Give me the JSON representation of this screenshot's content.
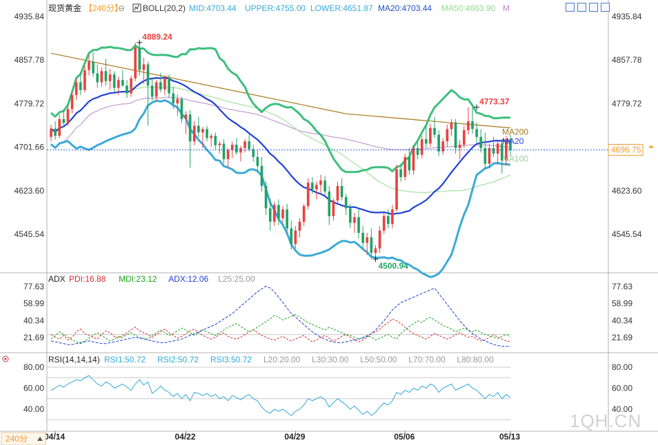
{
  "header": {
    "title": "现货黄金",
    "period": "【240分】",
    "boll_label": "BOLL(20,2)",
    "mid": "MID:4703.44",
    "upper": "UPPER:4755.00",
    "lower": "LOWER:4651.87",
    "ma20": "MA20:4703.44",
    "ma50": "MA50:4663.90",
    "m_trunc": "M"
  },
  "period_footer": "240分",
  "watermark": "1QH.CN",
  "colors": {
    "up": "#e8433f",
    "down": "#21a366",
    "upper_band": "#3dbf7c",
    "lower_band": "#3aa9d8",
    "mid_band": "#1f3fd6",
    "ma50": "#8ede8a",
    "ma100": "#b788c8",
    "ma200": "#a7771a",
    "pdi": "#d9282b",
    "mdi": "#1aa31a",
    "adx": "#1f3fd6",
    "rsi": "#30a8d8",
    "grid": "#c8c8c8",
    "price_tag": "#f39a2b"
  },
  "chart_data": [
    {
      "type": "candlestick",
      "title": "现货黄金",
      "y_ticks": [
        "4935.84",
        "4857.78",
        "4779.72",
        "4701.66",
        "4623.60",
        "4545.54"
      ],
      "ylim": [
        4480,
        4950
      ],
      "x_ticks": [
        {
          "label": "04/14",
          "index": 1
        },
        {
          "label": "04/22",
          "index": 32
        },
        {
          "label": "04/29",
          "index": 58
        },
        {
          "label": "05/06",
          "index": 84
        },
        {
          "label": "05/13",
          "index": 109
        }
      ],
      "current_price": 4696.75,
      "current_price_label": "4696.75",
      "annotations": [
        {
          "text": "4889.24",
          "index": 21,
          "value": 4889.24
        },
        {
          "text": "4500.94",
          "index": 77,
          "value": 4500.94
        },
        {
          "text": "4773.37",
          "index": 101,
          "value": 4773.37
        }
      ],
      "series_labels": [
        "MA20",
        "MA200",
        "MA100"
      ],
      "candles": [
        [
          4720,
          4742,
          4712,
          4735
        ],
        [
          4735,
          4748,
          4715,
          4722
        ],
        [
          4722,
          4760,
          4718,
          4752
        ],
        [
          4752,
          4770,
          4738,
          4745
        ],
        [
          4745,
          4778,
          4740,
          4770
        ],
        [
          4770,
          4800,
          4762,
          4795
        ],
        [
          4795,
          4825,
          4786,
          4818
        ],
        [
          4818,
          4835,
          4795,
          4804
        ],
        [
          4804,
          4848,
          4800,
          4840
        ],
        [
          4840,
          4868,
          4830,
          4855
        ],
        [
          4855,
          4872,
          4828,
          4834
        ],
        [
          4834,
          4850,
          4808,
          4818
        ],
        [
          4818,
          4845,
          4810,
          4838
        ],
        [
          4838,
          4860,
          4812,
          4820
        ],
        [
          4820,
          4842,
          4805,
          4832
        ],
        [
          4832,
          4838,
          4800,
          4808
        ],
        [
          4808,
          4828,
          4795,
          4822
        ],
        [
          4822,
          4840,
          4810,
          4812
        ],
        [
          4812,
          4822,
          4790,
          4798
        ],
        [
          4798,
          4830,
          4792,
          4825
        ],
        [
          4825,
          4889,
          4820,
          4880
        ],
        [
          4880,
          4889,
          4830,
          4840
        ],
        [
          4840,
          4862,
          4815,
          4850
        ],
        [
          4850,
          4855,
          4740,
          4812
        ],
        [
          4812,
          4826,
          4785,
          4792
        ],
        [
          4792,
          4822,
          4785,
          4818
        ],
        [
          4818,
          4835,
          4800,
          4805
        ],
        [
          4805,
          4830,
          4795,
          4826
        ],
        [
          4826,
          4832,
          4790,
          4798
        ],
        [
          4798,
          4810,
          4770,
          4780
        ],
        [
          4780,
          4796,
          4758,
          4788
        ],
        [
          4788,
          4792,
          4745,
          4752
        ],
        [
          4752,
          4766,
          4725,
          4760
        ],
        [
          4760,
          4768,
          4665,
          4712
        ],
        [
          4712,
          4748,
          4705,
          4740
        ],
        [
          4740,
          4756,
          4720,
          4728
        ],
        [
          4728,
          4738,
          4700,
          4734
        ],
        [
          4734,
          4740,
          4712,
          4718
        ],
        [
          4718,
          4726,
          4702,
          4722
        ],
        [
          4722,
          4728,
          4698,
          4705
        ],
        [
          4705,
          4712,
          4690,
          4708
        ],
        [
          4708,
          4716,
          4672,
          4680
        ],
        [
          4680,
          4700,
          4664,
          4696
        ],
        [
          4696,
          4712,
          4682,
          4706
        ],
        [
          4706,
          4718,
          4688,
          4692
        ],
        [
          4692,
          4704,
          4676,
          4700
        ],
        [
          4700,
          4716,
          4692,
          4712
        ],
        [
          4712,
          4724,
          4694,
          4698
        ],
        [
          4698,
          4706,
          4676,
          4684
        ],
        [
          4684,
          4696,
          4658,
          4668
        ],
        [
          4668,
          4684,
          4622,
          4632
        ],
        [
          4632,
          4640,
          4580,
          4592
        ],
        [
          4592,
          4610,
          4552,
          4568
        ],
        [
          4568,
          4604,
          4560,
          4598
        ],
        [
          4598,
          4608,
          4562,
          4574
        ],
        [
          4574,
          4596,
          4566,
          4590
        ],
        [
          4590,
          4600,
          4548,
          4556
        ],
        [
          4556,
          4570,
          4518,
          4528
        ],
        [
          4528,
          4560,
          4520,
          4552
        ],
        [
          4552,
          4574,
          4540,
          4568
        ],
        [
          4568,
          4600,
          4560,
          4596
        ],
        [
          4596,
          4646,
          4590,
          4638
        ],
        [
          4638,
          4648,
          4618,
          4626
        ],
        [
          4626,
          4640,
          4608,
          4634
        ],
        [
          4634,
          4652,
          4620,
          4642
        ],
        [
          4642,
          4650,
          4616,
          4622
        ],
        [
          4622,
          4632,
          4562,
          4578
        ],
        [
          4578,
          4610,
          4570,
          4606
        ],
        [
          4606,
          4640,
          4598,
          4632
        ],
        [
          4632,
          4646,
          4606,
          4612
        ],
        [
          4612,
          4618,
          4580,
          4592
        ],
        [
          4592,
          4600,
          4556,
          4566
        ],
        [
          4566,
          4584,
          4548,
          4576
        ],
        [
          4576,
          4590,
          4538,
          4548
        ],
        [
          4548,
          4560,
          4518,
          4530
        ],
        [
          4530,
          4548,
          4508,
          4540
        ],
        [
          4540,
          4556,
          4501,
          4512
        ],
        [
          4512,
          4526,
          4504,
          4520
        ],
        [
          4520,
          4560,
          4512,
          4552
        ],
        [
          4552,
          4584,
          4546,
          4578
        ],
        [
          4578,
          4590,
          4556,
          4564
        ],
        [
          4564,
          4598,
          4556,
          4590
        ],
        [
          4590,
          4670,
          4586,
          4662
        ],
        [
          4662,
          4672,
          4640,
          4648
        ],
        [
          4648,
          4690,
          4642,
          4684
        ],
        [
          4684,
          4700,
          4652,
          4660
        ],
        [
          4660,
          4706,
          4652,
          4700
        ],
        [
          4700,
          4712,
          4680,
          4688
        ],
        [
          4688,
          4722,
          4682,
          4716
        ],
        [
          4716,
          4740,
          4700,
          4708
        ],
        [
          4708,
          4744,
          4702,
          4736
        ],
        [
          4736,
          4756,
          4718,
          4724
        ],
        [
          4724,
          4732,
          4686,
          4694
        ],
        [
          4694,
          4718,
          4688,
          4712
        ],
        [
          4712,
          4742,
          4702,
          4734
        ],
        [
          4734,
          4752,
          4722,
          4746
        ],
        [
          4746,
          4752,
          4690,
          4700
        ],
        [
          4700,
          4714,
          4680,
          4706
        ],
        [
          4706,
          4740,
          4700,
          4732
        ],
        [
          4732,
          4773,
          4724,
          4748
        ],
        [
          4748,
          4773,
          4726,
          4734
        ],
        [
          4734,
          4746,
          4710,
          4720
        ],
        [
          4720,
          4734,
          4692,
          4700
        ],
        [
          4700,
          4728,
          4662,
          4672
        ],
        [
          4672,
          4708,
          4664,
          4700
        ],
        [
          4700,
          4720,
          4684,
          4690
        ],
        [
          4690,
          4714,
          4670,
          4708
        ],
        [
          4708,
          4716,
          4654,
          4678
        ],
        [
          4678,
          4722,
          4668,
          4716
        ],
        [
          4716,
          4724,
          4686,
          4696
        ]
      ]
    },
    {
      "type": "line",
      "title": "ADX",
      "legend": [
        "PDI:16.88",
        "MDI:23.12",
        "ADX:12.06",
        "L25:25.00"
      ],
      "y_ticks": [
        "77.63",
        "58.99",
        "40.34",
        "21.69"
      ],
      "ylim": [
        8,
        90
      ],
      "reference_level": 25,
      "series": [
        {
          "name": "PDI",
          "values": [
            25,
            22,
            20,
            24,
            19,
            22,
            28,
            31,
            26,
            24,
            22,
            20,
            25,
            29,
            27,
            23,
            21,
            24,
            27,
            30,
            33,
            29,
            27,
            25,
            22,
            25,
            28,
            31,
            27,
            24,
            21,
            23,
            26,
            29,
            31,
            27,
            24,
            22,
            20,
            22,
            25,
            27,
            23,
            21,
            20,
            22,
            25,
            28,
            30,
            27,
            24,
            22,
            20,
            19,
            21,
            23,
            20,
            18,
            20,
            22,
            24,
            20,
            17,
            19,
            22,
            24,
            21,
            18,
            20,
            23,
            25,
            22,
            19,
            17,
            19,
            22,
            26,
            28,
            31,
            35,
            38,
            42,
            40,
            37,
            33,
            29,
            26,
            24,
            22,
            20,
            23,
            26,
            24,
            22,
            20,
            22,
            25,
            27,
            24,
            22,
            23,
            20,
            18,
            19,
            22,
            25,
            22,
            20,
            18,
            17
          ]
        },
        {
          "name": "MDI",
          "values": [
            20,
            24,
            28,
            25,
            22,
            19,
            17,
            15,
            18,
            21,
            24,
            27,
            24,
            21,
            18,
            20,
            23,
            22,
            25,
            27,
            24,
            22,
            21,
            20,
            24,
            27,
            30,
            27,
            24,
            26,
            29,
            32,
            30,
            27,
            24,
            27,
            30,
            28,
            26,
            24,
            27,
            30,
            33,
            35,
            37,
            34,
            31,
            28,
            30,
            33,
            36,
            39,
            42,
            46,
            44,
            41,
            43,
            45,
            47,
            44,
            41,
            38,
            36,
            34,
            32,
            30,
            33,
            31,
            29,
            27,
            25,
            24,
            22,
            20,
            22,
            24,
            22,
            19,
            21,
            23,
            25,
            22,
            20,
            26,
            30,
            34,
            37,
            40,
            38,
            42,
            44,
            41,
            38,
            35,
            33,
            31,
            28,
            30,
            32,
            30,
            28,
            30,
            27,
            25,
            24,
            22,
            21,
            23,
            25,
            23
          ]
        },
        {
          "name": "ADX",
          "values": [
            18,
            17,
            16,
            15,
            14,
            14,
            15,
            16,
            17,
            18,
            17,
            16,
            15,
            15,
            16,
            17,
            18,
            19,
            20,
            21,
            22,
            21,
            20,
            19,
            18,
            17,
            16,
            16,
            17,
            18,
            19,
            20,
            22,
            24,
            26,
            28,
            30,
            32,
            34,
            36,
            39,
            42,
            45,
            48,
            52,
            56,
            60,
            64,
            68,
            72,
            75,
            78,
            76,
            72,
            66,
            60,
            54,
            48,
            44,
            40,
            36,
            32,
            28,
            25,
            22,
            20,
            18,
            17,
            16,
            16,
            17,
            18,
            19,
            20,
            21,
            23,
            26,
            30,
            35,
            40,
            46,
            52,
            56,
            60,
            62,
            64,
            66,
            68,
            70,
            72,
            74,
            76,
            70,
            64,
            58,
            52,
            46,
            40,
            35,
            30,
            26,
            23,
            20,
            18,
            16,
            14,
            13,
            12,
            12,
            12
          ]
        }
      ]
    },
    {
      "type": "line",
      "title": "RSI(14,14,14)",
      "legend": [
        "RSI1:50.72",
        "RSI2:50.72",
        "RSI3:50.72",
        "L20:20.00",
        "L30:30.00",
        "L50:50.00",
        "L70:70.00",
        "L80:80.00"
      ],
      "y_ticks": [
        "80.00",
        "60.00",
        "40.00"
      ],
      "ylim": [
        20,
        82
      ],
      "levels": [
        80,
        70,
        50,
        30
      ],
      "series": [
        {
          "name": "RSI1",
          "values": [
            58,
            60,
            63,
            61,
            64,
            66,
            68,
            67,
            70,
            72,
            68,
            64,
            62,
            66,
            64,
            60,
            62,
            64,
            61,
            58,
            64,
            68,
            63,
            66,
            55,
            58,
            62,
            58,
            56,
            52,
            55,
            50,
            54,
            48,
            56,
            55,
            53,
            55,
            52,
            54,
            50,
            52,
            48,
            53,
            51,
            49,
            52,
            54,
            50,
            48,
            42,
            38,
            36,
            40,
            38,
            40,
            37,
            34,
            38,
            40,
            44,
            50,
            48,
            50,
            52,
            49,
            42,
            46,
            50,
            47,
            44,
            40,
            43,
            39,
            35,
            38,
            34,
            37,
            42,
            46,
            44,
            48,
            56,
            54,
            58,
            56,
            60,
            58,
            62,
            60,
            64,
            62,
            56,
            60,
            62,
            64,
            58,
            60,
            62,
            64,
            60,
            58,
            54,
            50,
            54,
            52,
            56,
            50,
            54,
            51
          ]
        }
      ]
    }
  ]
}
